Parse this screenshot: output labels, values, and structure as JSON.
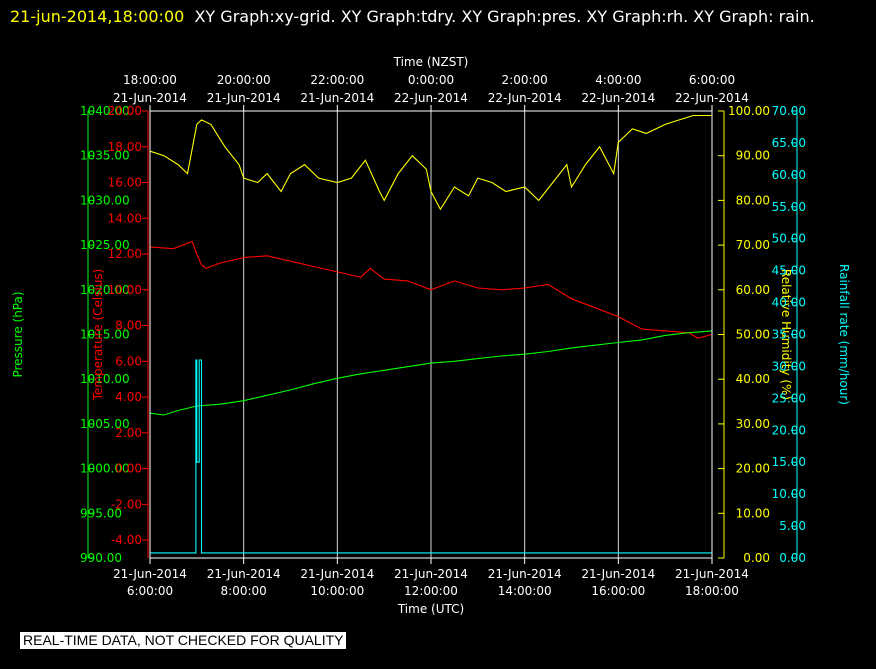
{
  "header": {
    "timestamp": "21-jun-2014,18:00:00",
    "graphs_text": "XY Graph:xy-grid.  XY Graph:tdry.  XY Graph:pres.  XY Graph:rh.  XY Graph: rain."
  },
  "footer": {
    "notice": "REAL-TIME DATA, NOT CHECKED FOR QUALITY"
  },
  "chart_data": {
    "type": "line",
    "title": "",
    "grid": true,
    "legend": "none",
    "x_bottom": {
      "label": "Time (UTC)",
      "ticks": [
        {
          "date": "21-Jun-2014",
          "time": "6:00:00"
        },
        {
          "date": "21-Jun-2014",
          "time": "8:00:00"
        },
        {
          "date": "21-Jun-2014",
          "time": "10:00:00"
        },
        {
          "date": "21-Jun-2014",
          "time": "12:00:00"
        },
        {
          "date": "21-Jun-2014",
          "time": "14:00:00"
        },
        {
          "date": "21-Jun-2014",
          "time": "16:00:00"
        },
        {
          "date": "21-Jun-2014",
          "time": "18:00:00"
        }
      ]
    },
    "x_top": {
      "label": "Time (NZST)",
      "ticks": [
        {
          "time": "18:00:00",
          "date": "21-Jun-2014"
        },
        {
          "time": "20:00:00",
          "date": "21-Jun-2014"
        },
        {
          "time": "22:00:00",
          "date": "21-Jun-2014"
        },
        {
          "time": "0:00:00",
          "date": "22-Jun-2014"
        },
        {
          "time": "2:00:00",
          "date": "22-Jun-2014"
        },
        {
          "time": "4:00:00",
          "date": "22-Jun-2014"
        },
        {
          "time": "6:00:00",
          "date": "22-Jun-2014"
        }
      ]
    },
    "x_range_utc_hours": [
      6,
      18
    ],
    "axes": {
      "pressure": {
        "label": "Pressure (hPa)",
        "color": "#00ff00",
        "range": [
          990,
          1040
        ],
        "ticks": [
          "990.00",
          "995.00",
          "1000.00",
          "1005.00",
          "1010.00",
          "1015.00",
          "1020.00",
          "1025.00",
          "1030.00",
          "1035.00",
          "1040.00"
        ]
      },
      "temperature": {
        "label": "Temperature (Celsius)",
        "color": "#ff0000",
        "range": [
          -5,
          20
        ],
        "ticks": [
          "-4.00",
          "-2.00",
          "0.00",
          "2.00",
          "4.00",
          "6.00",
          "8.00",
          "10.00",
          "12.00",
          "14.00",
          "16.00",
          "18.00",
          "20.00"
        ]
      },
      "humidity": {
        "label": "Relative Humidity (%)",
        "color": "#ffff00",
        "range": [
          0,
          100
        ],
        "ticks": [
          "0.00",
          "10.00",
          "20.00",
          "30.00",
          "40.00",
          "50.00",
          "60.00",
          "70.00",
          "80.00",
          "90.00",
          "100.00"
        ]
      },
      "rain": {
        "label": "Rainfall rate (mm/hour)",
        "color": "#00ffff",
        "range": [
          0,
          70
        ],
        "ticks": [
          "0.00",
          "5.00",
          "10.00",
          "15.00",
          "20.00",
          "25.00",
          "30.00",
          "35.00",
          "40.00",
          "45.00",
          "50.00",
          "55.00",
          "60.00",
          "65.00",
          "70.00"
        ]
      }
    },
    "series": [
      {
        "axis": "temperature",
        "color": "#ff0000",
        "x": [
          6.0,
          6.5,
          6.9,
          7.0,
          7.1,
          7.2,
          7.5,
          8.0,
          8.5,
          9.0,
          9.5,
          10.0,
          10.5,
          10.7,
          11.0,
          11.5,
          12.0,
          12.5,
          13.0,
          13.5,
          14.0,
          14.5,
          15.0,
          15.5,
          16.0,
          16.5,
          17.0,
          17.5,
          17.7,
          18.0
        ],
        "y": [
          12.4,
          12.3,
          12.7,
          12.0,
          11.4,
          11.2,
          11.5,
          11.8,
          11.9,
          11.6,
          11.3,
          11.0,
          10.7,
          11.2,
          10.6,
          10.5,
          10.0,
          10.5,
          10.1,
          10.0,
          10.1,
          10.3,
          9.5,
          9.0,
          8.5,
          7.8,
          7.7,
          7.6,
          7.3,
          7.5
        ]
      },
      {
        "axis": "pressure",
        "color": "#00ff00",
        "x": [
          6.0,
          6.3,
          6.6,
          7.0,
          7.5,
          8.0,
          8.5,
          9.0,
          9.5,
          10.0,
          10.5,
          11.0,
          11.5,
          12.0,
          12.5,
          13.0,
          13.5,
          14.0,
          14.5,
          15.0,
          15.5,
          16.0,
          16.5,
          17.0,
          17.5,
          18.0
        ],
        "y": [
          1006.2,
          1006.0,
          1006.5,
          1007.0,
          1007.2,
          1007.6,
          1008.2,
          1008.8,
          1009.5,
          1010.1,
          1010.6,
          1011.0,
          1011.4,
          1011.8,
          1012.0,
          1012.3,
          1012.6,
          1012.8,
          1013.1,
          1013.5,
          1013.8,
          1014.1,
          1014.4,
          1014.9,
          1015.2,
          1015.4
        ]
      },
      {
        "axis": "humidity",
        "color": "#ffff00",
        "x": [
          6.0,
          6.3,
          6.6,
          6.8,
          7.0,
          7.1,
          7.3,
          7.6,
          7.9,
          8.0,
          8.3,
          8.5,
          8.8,
          9.0,
          9.3,
          9.6,
          10.0,
          10.3,
          10.6,
          10.9,
          11.0,
          11.3,
          11.6,
          11.9,
          12.0,
          12.2,
          12.5,
          12.8,
          13.0,
          13.3,
          13.6,
          14.0,
          14.3,
          14.6,
          14.9,
          15.0,
          15.3,
          15.6,
          15.9,
          16.0,
          16.3,
          16.6,
          17.0,
          17.3,
          17.6,
          18.0
        ],
        "y": [
          91,
          90,
          88,
          86,
          97,
          98,
          97,
          92,
          88,
          85,
          84,
          86,
          82,
          86,
          88,
          85,
          84,
          85,
          89,
          82,
          80,
          86,
          90,
          87,
          82,
          78,
          83,
          81,
          85,
          84,
          82,
          83,
          80,
          84,
          88,
          83,
          88,
          92,
          86,
          93,
          96,
          95,
          97,
          98,
          99,
          99
        ]
      },
      {
        "axis": "rain",
        "color": "#00ffff",
        "x": [
          6.0,
          6.98,
          6.98,
          7.0,
          7.0,
          7.05,
          7.05,
          7.1,
          7.1,
          18.0
        ],
        "y": [
          0.8,
          0.8,
          31.0,
          31.0,
          15.0,
          15.0,
          31.0,
          31.0,
          0.8,
          0.8
        ]
      }
    ]
  }
}
